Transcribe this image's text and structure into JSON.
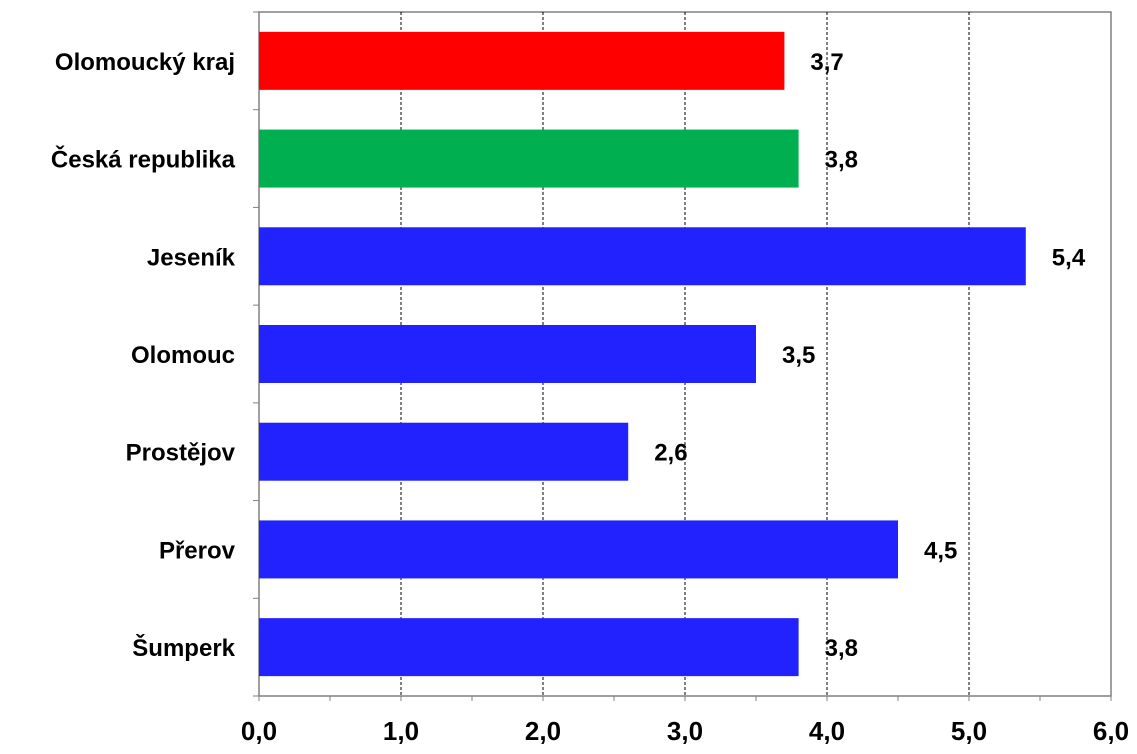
{
  "chart_data": {
    "type": "bar",
    "orientation": "horizontal",
    "categories": [
      "Olomoucký kraj",
      "Česká republika",
      "Jeseník",
      "Olomouc",
      "Prostějov",
      "Přerov",
      "Šumperk"
    ],
    "values": [
      3.7,
      3.8,
      5.4,
      3.5,
      2.6,
      4.5,
      3.8
    ],
    "data_labels": [
      "3,7",
      "3,8",
      "5,4",
      "3,5",
      "2,6",
      "4,5",
      "3,8"
    ],
    "bar_colors": [
      "#ff0000",
      "#00b050",
      "#2222ff",
      "#2222ff",
      "#2222ff",
      "#2222ff",
      "#2222ff"
    ],
    "x_ticks": [
      0,
      1,
      2,
      3,
      4,
      5,
      6
    ],
    "x_tick_labels": [
      "0,0",
      "1,0",
      "2,0",
      "3,0",
      "4,0",
      "5,0",
      "6,0"
    ],
    "xlim": [
      0,
      6
    ],
    "title": "",
    "xlabel": "",
    "ylabel": "",
    "grid": "vertical dashed",
    "legend": "none"
  }
}
